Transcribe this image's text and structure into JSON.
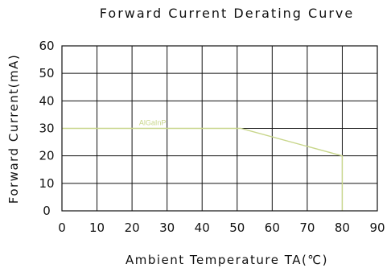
{
  "chart_data": {
    "type": "line",
    "title": "Forward Current Derating Curve",
    "xlabel": "Ambient Temperature TA(℃)",
    "ylabel": "Forward Current(mA)",
    "xlim": [
      0,
      90
    ],
    "ylim": [
      0,
      60
    ],
    "x_ticks": [
      "0",
      "10",
      "20",
      "30",
      "40",
      "50",
      "60",
      "70",
      "80",
      "90"
    ],
    "y_ticks": [
      "0",
      "10",
      "20",
      "30",
      "40",
      "50",
      "60"
    ],
    "grid": true,
    "series": [
      {
        "name": "AlGaInP",
        "color": "#c8d68a",
        "x": [
          0,
          51,
          80,
          80
        ],
        "y": [
          30,
          30,
          20,
          0
        ]
      }
    ]
  }
}
